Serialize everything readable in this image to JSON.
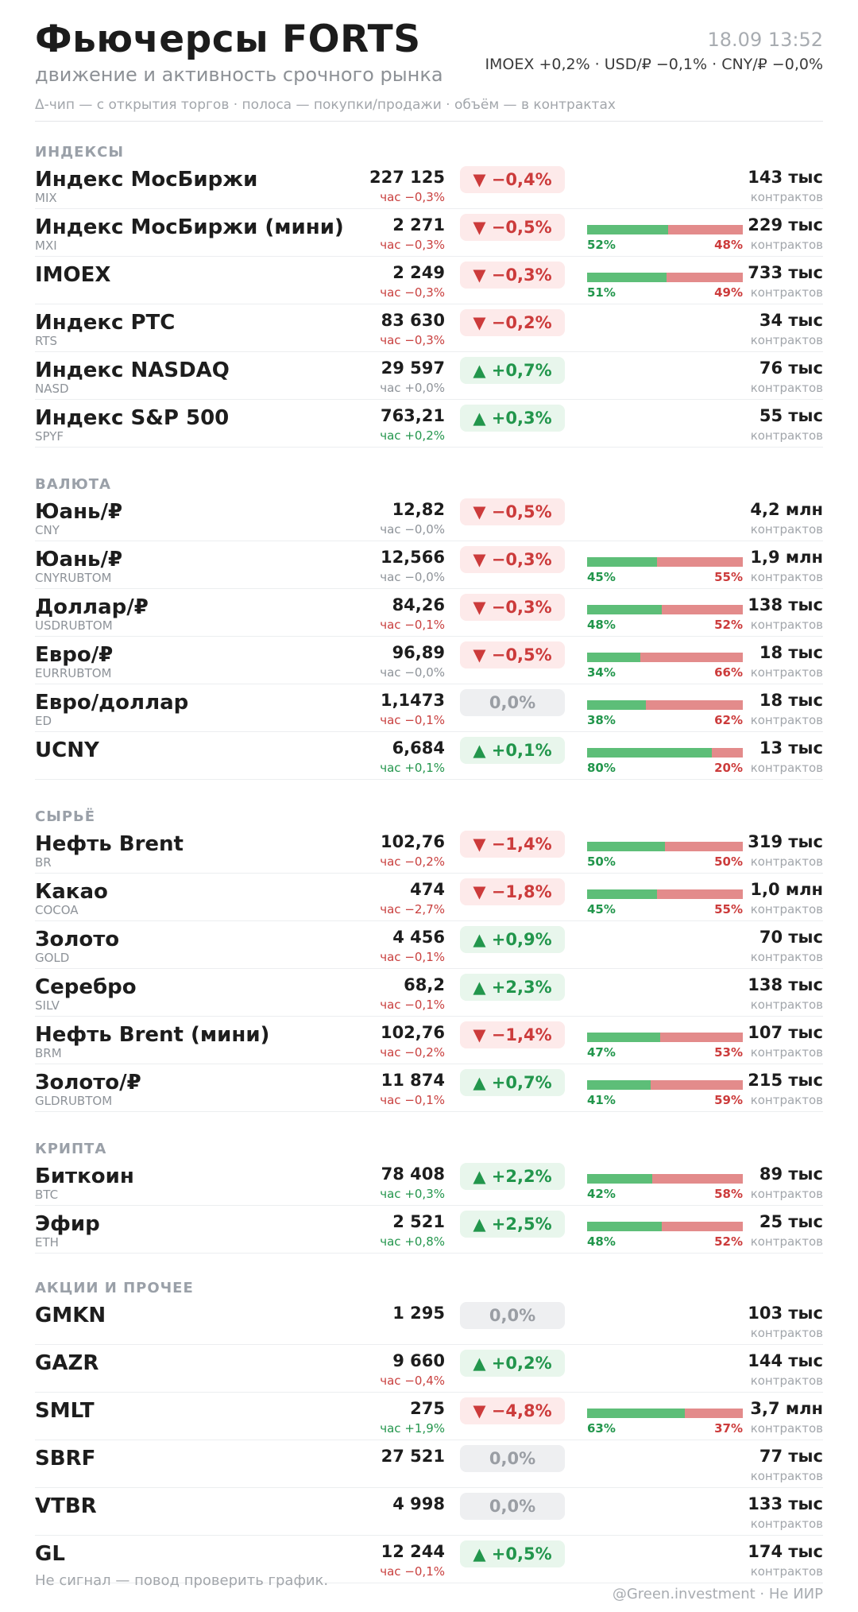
{
  "header": {
    "title": "Фьючерсы FORTS",
    "subtitle": "движение и активность срочного рынка",
    "legend": "Δ-чип — с открытия торгов  ·  полоса — покупки/продажи  ·  объём — в контрактах",
    "timestamp": "18.09 13:52",
    "indices": "IMOEX +0,2%  ·  USD/₽ −0,1%  ·  CNY/₽ −0,0%"
  },
  "colors": {
    "up": "#22964c",
    "down": "#cc3b3b",
    "neutral": "#9a9ea4",
    "buy_bar": "#5dbe78",
    "sell_bar": "#e38b8b"
  },
  "sections": [
    {
      "title": "ИНДЕКСЫ",
      "rows": [
        {
          "name": "Индекс МосБиржи",
          "ticker": "MIX",
          "price": "227 125",
          "hour": "час −0,3%",
          "hour_dir": "neg",
          "chip": "▼ −0,4%",
          "chip_dir": "neg",
          "volume": "143 тыс",
          "volume_unit": "контрактов"
        },
        {
          "name": "Индекс МосБиржи (мини)",
          "ticker": "MXI",
          "price": "2 271",
          "hour": "час −0,3%",
          "hour_dir": "neg",
          "chip": "▼ −0,5%",
          "chip_dir": "neg",
          "buy_share": 0.52,
          "buy_label": "52%",
          "sell_label": "48%",
          "volume": "229 тыс",
          "volume_unit": "контрактов"
        },
        {
          "name": "IMOEX",
          "ticker": "",
          "price": "2 249",
          "hour": "час −0,3%",
          "hour_dir": "neg",
          "chip": "▼ −0,3%",
          "chip_dir": "neg",
          "buy_share": 0.51,
          "buy_label": "51%",
          "sell_label": "49%",
          "volume": "733 тыс",
          "volume_unit": "контрактов"
        },
        {
          "name": "Индекс РТС",
          "ticker": "RTS",
          "price": "83 630",
          "hour": "час −0,3%",
          "hour_dir": "neg",
          "chip": "▼ −0,2%",
          "chip_dir": "neg",
          "volume": "34 тыс",
          "volume_unit": "контрактов"
        },
        {
          "name": "Индекс NASDAQ",
          "ticker": "NASD",
          "price": "29 597",
          "hour": "час +0,0%",
          "hour_dir": "neu",
          "chip": "▲ +0,7%",
          "chip_dir": "pos",
          "volume": "76 тыс",
          "volume_unit": "контрактов"
        },
        {
          "name": "Индекс S&P 500",
          "ticker": "SPYF",
          "price": "763,21",
          "hour": "час +0,2%",
          "hour_dir": "pos",
          "chip": "▲ +0,3%",
          "chip_dir": "pos",
          "volume": "55 тыс",
          "volume_unit": "контрактов"
        }
      ]
    },
    {
      "title": "ВАЛЮТА",
      "rows": [
        {
          "name": "Юань/₽",
          "ticker": "CNY",
          "price": "12,82",
          "hour": "час −0,0%",
          "hour_dir": "neu",
          "chip": "▼ −0,5%",
          "chip_dir": "neg",
          "volume": "4,2 млн",
          "volume_unit": "контрактов"
        },
        {
          "name": "Юань/₽",
          "ticker": "CNYRUBTOM",
          "price": "12,566",
          "hour": "час −0,0%",
          "hour_dir": "neu",
          "chip": "▼ −0,3%",
          "chip_dir": "neg",
          "buy_share": 0.45,
          "buy_label": "45%",
          "sell_label": "55%",
          "volume": "1,9 млн",
          "volume_unit": "контрактов"
        },
        {
          "name": "Доллар/₽",
          "ticker": "USDRUBTOM",
          "price": "84,26",
          "hour": "час −0,1%",
          "hour_dir": "neg",
          "chip": "▼ −0,3%",
          "chip_dir": "neg",
          "buy_share": 0.48,
          "buy_label": "48%",
          "sell_label": "52%",
          "volume": "138 тыс",
          "volume_unit": "контрактов"
        },
        {
          "name": "Евро/₽",
          "ticker": "EURRUBTOM",
          "price": "96,89",
          "hour": "час −0,0%",
          "hour_dir": "neu",
          "chip": "▼ −0,5%",
          "chip_dir": "neg",
          "buy_share": 0.34,
          "buy_label": "34%",
          "sell_label": "66%",
          "volume": "18 тыс",
          "volume_unit": "контрактов"
        },
        {
          "name": "Евро/доллар",
          "ticker": "ED",
          "price": "1,1473",
          "hour": "час −0,1%",
          "hour_dir": "neg",
          "chip": "0,0%",
          "chip_dir": "neu",
          "buy_share": 0.38,
          "buy_label": "38%",
          "sell_label": "62%",
          "volume": "18 тыс",
          "volume_unit": "контрактов"
        },
        {
          "name": "UCNY",
          "ticker": "",
          "price": "6,684",
          "hour": "час +0,1%",
          "hour_dir": "pos",
          "chip": "▲ +0,1%",
          "chip_dir": "pos",
          "buy_share": 0.8,
          "buy_label": "80%",
          "sell_label": "20%",
          "volume": "13 тыс",
          "volume_unit": "контрактов"
        }
      ]
    },
    {
      "title": "СЫРЬЁ",
      "rows": [
        {
          "name": "Нефть Brent",
          "ticker": "BR",
          "price": "102,76",
          "hour": "час −0,2%",
          "hour_dir": "neg",
          "chip": "▼ −1,4%",
          "chip_dir": "neg",
          "buy_share": 0.5,
          "buy_label": "50%",
          "sell_label": "50%",
          "volume": "319 тыс",
          "volume_unit": "контрактов"
        },
        {
          "name": "Какао",
          "ticker": "COCOA",
          "price": "474",
          "hour": "час −2,7%",
          "hour_dir": "neg",
          "chip": "▼ −1,8%",
          "chip_dir": "neg",
          "buy_share": 0.45,
          "buy_label": "45%",
          "sell_label": "55%",
          "volume": "1,0 млн",
          "volume_unit": "контрактов"
        },
        {
          "name": "Золото",
          "ticker": "GOLD",
          "price": "4 456",
          "hour": "час −0,1%",
          "hour_dir": "neg",
          "chip": "▲ +0,9%",
          "chip_dir": "pos",
          "volume": "70 тыс",
          "volume_unit": "контрактов"
        },
        {
          "name": "Серебро",
          "ticker": "SILV",
          "price": "68,2",
          "hour": "час −0,1%",
          "hour_dir": "neg",
          "chip": "▲ +2,3%",
          "chip_dir": "pos",
          "volume": "138 тыс",
          "volume_unit": "контрактов"
        },
        {
          "name": "Нефть Brent (мини)",
          "ticker": "BRM",
          "price": "102,76",
          "hour": "час −0,2%",
          "hour_dir": "neg",
          "chip": "▼ −1,4%",
          "chip_dir": "neg",
          "buy_share": 0.47,
          "buy_label": "47%",
          "sell_label": "53%",
          "volume": "107 тыс",
          "volume_unit": "контрактов"
        },
        {
          "name": "Золото/₽",
          "ticker": "GLDRUBTOM",
          "price": "11 874",
          "hour": "час −0,1%",
          "hour_dir": "neg",
          "chip": "▲ +0,7%",
          "chip_dir": "pos",
          "buy_share": 0.41,
          "buy_label": "41%",
          "sell_label": "59%",
          "volume": "215 тыс",
          "volume_unit": "контрактов"
        }
      ]
    },
    {
      "title": "КРИПТА",
      "rows": [
        {
          "name": "Биткоин",
          "ticker": "BTC",
          "price": "78 408",
          "hour": "час +0,3%",
          "hour_dir": "pos",
          "chip": "▲ +2,2%",
          "chip_dir": "pos",
          "buy_share": 0.42,
          "buy_label": "42%",
          "sell_label": "58%",
          "volume": "89 тыс",
          "volume_unit": "контрактов"
        },
        {
          "name": "Эфир",
          "ticker": "ETH",
          "price": "2 521",
          "hour": "час +0,8%",
          "hour_dir": "pos",
          "chip": "▲ +2,5%",
          "chip_dir": "pos",
          "buy_share": 0.48,
          "buy_label": "48%",
          "sell_label": "52%",
          "volume": "25 тыс",
          "volume_unit": "контрактов"
        }
      ]
    },
    {
      "title": "АКЦИИ И ПРОЧЕЕ",
      "rows": [
        {
          "name": "GMKN",
          "ticker": "",
          "price": "1 295",
          "hour": "",
          "hour_dir": "neu",
          "chip": "0,0%",
          "chip_dir": "neu",
          "volume": "103 тыс",
          "volume_unit": "контрактов"
        },
        {
          "name": "GAZR",
          "ticker": "",
          "price": "9 660",
          "hour": "час −0,4%",
          "hour_dir": "neg",
          "chip": "▲ +0,2%",
          "chip_dir": "pos",
          "volume": "144 тыс",
          "volume_unit": "контрактов"
        },
        {
          "name": "SMLT",
          "ticker": "",
          "price": "275",
          "hour": "час +1,9%",
          "hour_dir": "pos",
          "chip": "▼ −4,8%",
          "chip_dir": "neg",
          "buy_share": 0.63,
          "buy_label": "63%",
          "sell_label": "37%",
          "volume": "3,7 млн",
          "volume_unit": "контрактов"
        },
        {
          "name": "SBRF",
          "ticker": "",
          "price": "27 521",
          "hour": "",
          "hour_dir": "neu",
          "chip": "0,0%",
          "chip_dir": "neu",
          "volume": "77 тыс",
          "volume_unit": "контрактов"
        },
        {
          "name": "VTBR",
          "ticker": "",
          "price": "4 998",
          "hour": "",
          "hour_dir": "neu",
          "chip": "0,0%",
          "chip_dir": "neu",
          "volume": "133 тыс",
          "volume_unit": "контрактов"
        },
        {
          "name": "GL",
          "ticker": "",
          "price": "12 244",
          "hour": "час −0,1%",
          "hour_dir": "neg",
          "chip": "▲ +0,5%",
          "chip_dir": "pos",
          "volume": "174 тыс",
          "volume_unit": "контрактов"
        }
      ]
    }
  ],
  "footer": {
    "note": "Не сигнал — повод проверить график.",
    "credit": "@Green.investment · Не ИИР"
  }
}
